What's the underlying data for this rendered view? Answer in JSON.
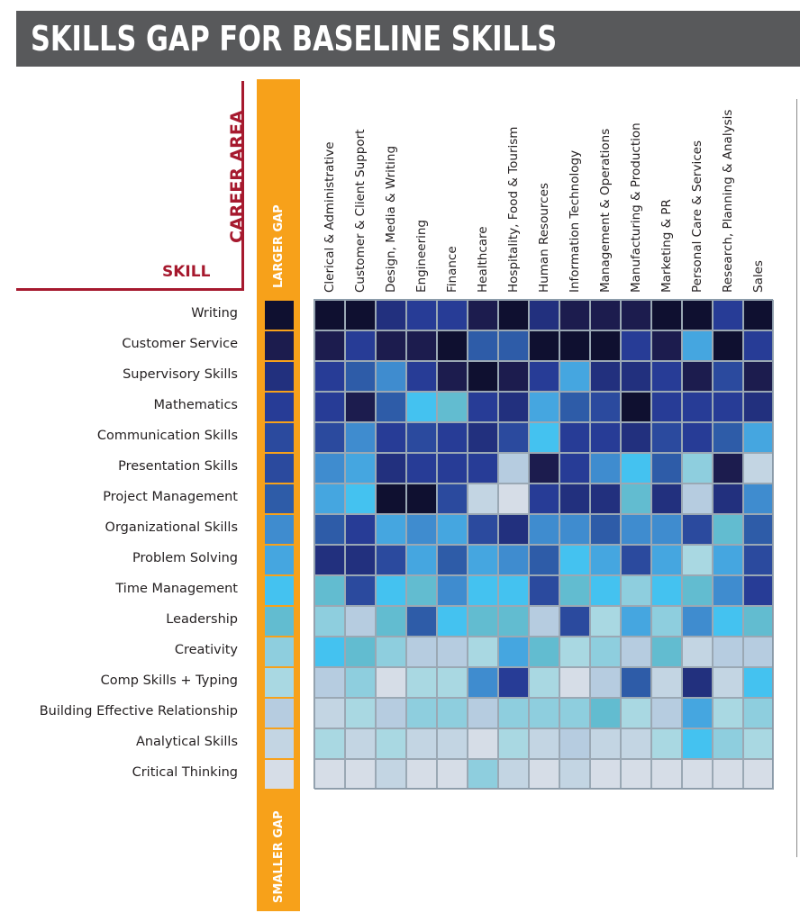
{
  "title": "SKILLS GAP FOR BASELINE SKILLS",
  "axis_labels": {
    "career_area": "CAREER AREA",
    "skill": "SKILL"
  },
  "gap_scale": {
    "top": "LARGER GAP",
    "bottom": "SMALLER GAP"
  },
  "colors": {
    "title_bar": "#58595b",
    "accent_red": "#a6192e",
    "scale_orange": "#f7a11a",
    "palette": [
      "#0f1030",
      "#1c1c4e",
      "#22307e",
      "#273c96",
      "#2b4a9e",
      "#2e5ca8",
      "#3f8ccf",
      "#45a6e0",
      "#44c2f0",
      "#62bcd0",
      "#8ecede",
      "#a9d8e2",
      "#b6cce0",
      "#c3d5e3",
      "#d6dde7"
    ]
  },
  "chart_data": {
    "type": "heatmap",
    "title": "SKILLS GAP FOR BASELINE SKILLS",
    "xlabel": "CAREER AREA",
    "ylabel": "SKILL",
    "columns": [
      "Clerical & Administrative",
      "Customer & Client Support",
      "Design, Media & Writing",
      "Engineering",
      "Finance",
      "Healthcare",
      "Hospitality, Food & Tourism",
      "Human Resources",
      "Information Technology",
      "Management & Operations",
      "Manufacturing & Production",
      "Marketing & PR",
      "Personal Care & Services",
      "Research, Planning & Analysis",
      "Sales"
    ],
    "rows": [
      "Writing",
      "Customer Service",
      "Supervisory Skills",
      "Mathematics",
      "Communication Skills",
      "Presentation Skills",
      "Project Management",
      "Organizational Skills",
      "Problem Solving",
      "Time Management",
      "Leadership",
      "Creativity",
      "Comp Skills + Typing",
      "Building Effective Relationship",
      "Analytical Skills",
      "Critical Thinking"
    ],
    "legend_ranks": [
      0,
      1,
      2,
      3,
      4,
      4,
      5,
      6,
      7,
      8,
      9,
      10,
      11,
      12,
      13,
      14
    ],
    "value_meaning": "color rank 0 = larger gap, 14 = smaller gap",
    "values": [
      [
        0,
        0,
        2,
        3,
        3,
        1,
        0,
        2,
        1,
        1,
        1,
        0,
        0,
        3,
        0
      ],
      [
        1,
        3,
        1,
        1,
        0,
        5,
        5,
        0,
        0,
        0,
        3,
        1,
        7,
        0,
        3
      ],
      [
        3,
        5,
        6,
        3,
        1,
        0,
        1,
        3,
        7,
        2,
        2,
        3,
        1,
        4,
        1
      ],
      [
        3,
        1,
        5,
        8,
        9,
        3,
        2,
        7,
        5,
        4,
        0,
        3,
        3,
        3,
        2
      ],
      [
        4,
        6,
        3,
        4,
        3,
        2,
        4,
        8,
        3,
        3,
        2,
        4,
        3,
        5,
        7
      ],
      [
        6,
        7,
        2,
        3,
        3,
        3,
        12,
        1,
        3,
        6,
        8,
        5,
        10,
        1,
        13
      ],
      [
        7,
        8,
        0,
        0,
        4,
        13,
        14,
        3,
        2,
        2,
        9,
        2,
        12,
        2,
        6
      ],
      [
        5,
        3,
        7,
        6,
        7,
        4,
        2,
        6,
        6,
        5,
        6,
        6,
        4,
        9,
        5
      ],
      [
        2,
        2,
        4,
        7,
        5,
        7,
        6,
        5,
        8,
        7,
        4,
        7,
        11,
        7,
        4
      ],
      [
        9,
        4,
        8,
        9,
        6,
        8,
        8,
        4,
        9,
        8,
        10,
        8,
        9,
        6,
        3
      ],
      [
        10,
        12,
        9,
        5,
        8,
        9,
        9,
        12,
        4,
        11,
        7,
        10,
        6,
        8,
        9
      ],
      [
        8,
        9,
        10,
        12,
        12,
        11,
        7,
        9,
        11,
        10,
        12,
        9,
        13,
        12,
        12
      ],
      [
        12,
        10,
        14,
        11,
        11,
        6,
        3,
        11,
        14,
        12,
        5,
        13,
        2,
        13,
        8
      ],
      [
        13,
        11,
        12,
        10,
        10,
        12,
        10,
        10,
        10,
        9,
        11,
        12,
        7,
        11,
        10
      ],
      [
        11,
        13,
        11,
        13,
        13,
        14,
        11,
        13,
        12,
        13,
        13,
        11,
        8,
        10,
        11
      ],
      [
        14,
        14,
        13,
        14,
        14,
        10,
        13,
        14,
        13,
        14,
        14,
        14,
        14,
        14,
        14
      ]
    ]
  }
}
